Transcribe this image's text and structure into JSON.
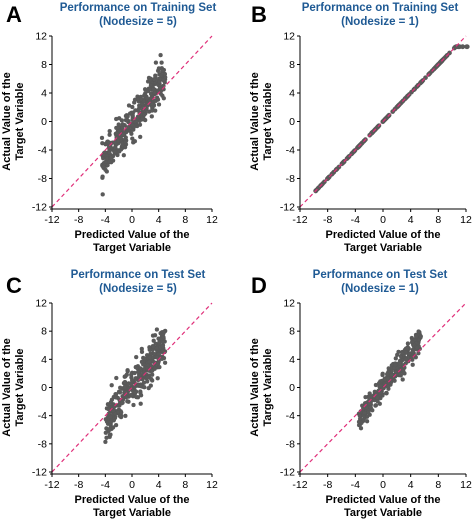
{
  "colors": {
    "points": "#5a5a5a",
    "reference_line": "#e0307a",
    "title": "#1f5a94"
  },
  "chart_data": [
    {
      "type": "scatter",
      "panel": "A",
      "title_lines": [
        "Performance on Training Set",
        "(Nodesize = 5)"
      ],
      "xlabel_lines": [
        "Predicted Value of the",
        "Target Variable"
      ],
      "ylabel_lines": [
        "Actual Value of the",
        "Target Variable"
      ],
      "xlim": [
        -12,
        12
      ],
      "ylim": [
        -12,
        12
      ],
      "xticks": [
        "-12",
        "-8",
        "-4",
        "0",
        "4",
        "8",
        "12"
      ],
      "yticks": [
        "-12",
        "-8",
        "-4",
        "0",
        "4",
        "8",
        "12"
      ],
      "reference_line": "y = x (dashed)",
      "cloud": {
        "x_range": [
          -4.5,
          5
        ],
        "slope": 1.3,
        "spread": 1.3,
        "n": 340
      }
    },
    {
      "type": "scatter",
      "panel": "B",
      "title_lines": [
        "Performance on Training Set",
        "(Nodesize = 1)"
      ],
      "xlabel_lines": [
        "Predicted Value of the",
        "Target Variable"
      ],
      "ylabel_lines": [
        "Actual Value of the",
        "Target Variable"
      ],
      "xlim": [
        -12,
        12
      ],
      "ylim": [
        -12,
        12
      ],
      "xticks": [
        "-12",
        "-8",
        "-4",
        "0",
        "4",
        "8",
        "12"
      ],
      "yticks": [
        "-12",
        "-8",
        "-4",
        "0",
        "4",
        "8",
        "12"
      ],
      "reference_line": "y = x (dashed)",
      "cloud": {
        "x_range": [
          -9.8,
          12.2
        ],
        "slope": 1.0,
        "spread": 0.0,
        "n": 160
      }
    },
    {
      "type": "scatter",
      "panel": "C",
      "title_lines": [
        "Performance on Test Set",
        "(Nodesize = 5)"
      ],
      "xlabel_lines": [
        "Predicted Value of the",
        "Target Variable"
      ],
      "ylabel_lines": [
        "Actual Value of the",
        "Target Variable"
      ],
      "xlim": [
        -12,
        12
      ],
      "ylim": [
        -12,
        12
      ],
      "xticks": [
        "-12",
        "-8",
        "-4",
        "0",
        "4",
        "8",
        "12"
      ],
      "yticks": [
        "-12",
        "-8",
        "-4",
        "0",
        "4",
        "8",
        "12"
      ],
      "reference_line": "y = x (dashed)",
      "cloud": {
        "x_range": [
          -4,
          5
        ],
        "slope": 1.3,
        "spread": 1.4,
        "n": 340
      }
    },
    {
      "type": "scatter",
      "panel": "D",
      "title_lines": [
        "Performance on Test Set",
        "(Nodesize = 1)"
      ],
      "xlabel_lines": [
        "Predicted Value of the",
        "Target Variable"
      ],
      "ylabel_lines": [
        "Actual Value of the",
        "Target Variable"
      ],
      "xlim": [
        -12,
        12
      ],
      "ylim": [
        -12,
        12
      ],
      "xticks": [
        "-12",
        "-8",
        "-4",
        "0",
        "4",
        "8",
        "12"
      ],
      "yticks": [
        "-12",
        "-8",
        "-4",
        "0",
        "4",
        "8",
        "12"
      ],
      "reference_line": "y = x (dashed)",
      "cloud": {
        "x_range": [
          -3.5,
          5.5
        ],
        "slope": 1.3,
        "spread": 0.9,
        "n": 300
      }
    }
  ]
}
